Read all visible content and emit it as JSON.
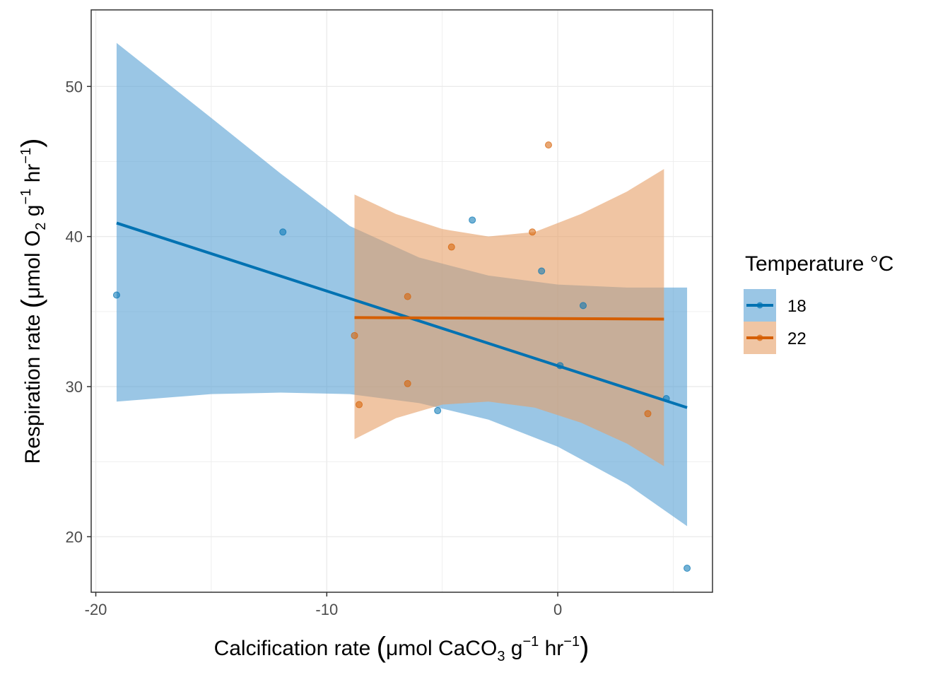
{
  "chart_data": {
    "type": "scatter",
    "title": "",
    "xlabel": {
      "pre": "Calcification rate ",
      "unit_main": "μmol CaCO",
      "sub": "3",
      "g": " g",
      "sup1": "−1",
      "hr": " hr",
      "sup2": "−1"
    },
    "ylabel": {
      "pre": "Respiration rate ",
      "unit_main": "μmol O",
      "sub": "2",
      "g": " g",
      "sup1": "−1",
      "hr": " hr",
      "sup2": "−1"
    },
    "xlim": [
      -20.2,
      6.7
    ],
    "ylim": [
      16.3,
      55.1
    ],
    "x_ticks": [
      -20,
      -10,
      0
    ],
    "y_ticks": [
      20,
      30,
      40,
      50
    ],
    "grid": true,
    "legend": {
      "title": "Temperature °C",
      "position": "right"
    },
    "series": [
      {
        "name": "18",
        "color": "#0072B2",
        "fill": "#56A0D3",
        "points": [
          {
            "x": -19.1,
            "y": 36.1
          },
          {
            "x": -11.9,
            "y": 40.3
          },
          {
            "x": -5.2,
            "y": 28.4
          },
          {
            "x": -3.7,
            "y": 41.1
          },
          {
            "x": -0.7,
            "y": 37.7
          },
          {
            "x": 0.1,
            "y": 31.4
          },
          {
            "x": 1.1,
            "y": 35.4
          },
          {
            "x": 4.7,
            "y": 29.2
          },
          {
            "x": 5.6,
            "y": 17.9
          }
        ],
        "fit_line": [
          {
            "x": -19.1,
            "y": 40.9
          },
          {
            "x": 5.6,
            "y": 28.6
          }
        ],
        "ci_lower": [
          {
            "x": -19.1,
            "y": 29.0
          },
          {
            "x": -15,
            "y": 29.5
          },
          {
            "x": -12,
            "y": 29.6
          },
          {
            "x": -9,
            "y": 29.5
          },
          {
            "x": -6,
            "y": 28.9
          },
          {
            "x": -3,
            "y": 27.8
          },
          {
            "x": 0,
            "y": 26.0
          },
          {
            "x": 3,
            "y": 23.5
          },
          {
            "x": 5.6,
            "y": 20.7
          }
        ],
        "ci_upper": [
          {
            "x": -19.1,
            "y": 52.9
          },
          {
            "x": -15,
            "y": 47.9
          },
          {
            "x": -12,
            "y": 44.2
          },
          {
            "x": -9,
            "y": 40.7
          },
          {
            "x": -6,
            "y": 38.6
          },
          {
            "x": -3,
            "y": 37.4
          },
          {
            "x": 0,
            "y": 36.8
          },
          {
            "x": 3,
            "y": 36.6
          },
          {
            "x": 5.6,
            "y": 36.6
          }
        ]
      },
      {
        "name": "22",
        "color": "#D55E00",
        "fill": "#E69F66",
        "points": [
          {
            "x": -8.8,
            "y": 33.4
          },
          {
            "x": -8.6,
            "y": 28.8
          },
          {
            "x": -6.5,
            "y": 36.0
          },
          {
            "x": -6.5,
            "y": 30.2
          },
          {
            "x": -4.6,
            "y": 39.3
          },
          {
            "x": -1.1,
            "y": 40.3
          },
          {
            "x": -0.4,
            "y": 46.1
          },
          {
            "x": 3.9,
            "y": 28.2
          }
        ],
        "fit_line": [
          {
            "x": -8.8,
            "y": 34.6
          },
          {
            "x": 4.6,
            "y": 34.5
          }
        ],
        "ci_lower": [
          {
            "x": -8.8,
            "y": 26.5
          },
          {
            "x": -7,
            "y": 27.9
          },
          {
            "x": -5,
            "y": 28.8
          },
          {
            "x": -3,
            "y": 29.0
          },
          {
            "x": -1,
            "y": 28.6
          },
          {
            "x": 1,
            "y": 27.6
          },
          {
            "x": 3,
            "y": 26.2
          },
          {
            "x": 4.6,
            "y": 24.7
          }
        ],
        "ci_upper": [
          {
            "x": -8.8,
            "y": 42.8
          },
          {
            "x": -7,
            "y": 41.5
          },
          {
            "x": -5,
            "y": 40.5
          },
          {
            "x": -3,
            "y": 40.0
          },
          {
            "x": -1,
            "y": 40.3
          },
          {
            "x": 1,
            "y": 41.5
          },
          {
            "x": 3,
            "y": 43.0
          },
          {
            "x": 4.6,
            "y": 44.5
          }
        ]
      }
    ]
  }
}
